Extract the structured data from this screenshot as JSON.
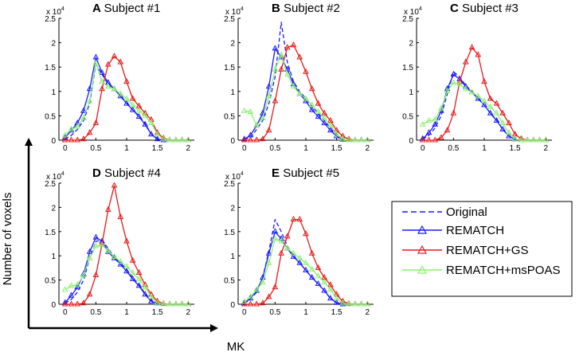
{
  "figure": {
    "y_axis_label": "Number of voxels",
    "x_axis_label": "MK"
  },
  "legend": {
    "entries": [
      {
        "name": "Original",
        "color": "#1a1aff",
        "style": "dashed",
        "marker": "none"
      },
      {
        "name": "REMATCH",
        "color": "#1a1aff",
        "style": "solid",
        "marker": "triangle"
      },
      {
        "name": "REMATCH+GS",
        "color": "#e8191a",
        "style": "solid",
        "marker": "triangle"
      },
      {
        "name": "REMATCH+msPOAS",
        "color": "#8cf06e",
        "style": "solid",
        "marker": "triangle"
      }
    ]
  },
  "chart_data": [
    {
      "type": "line",
      "panel": "A",
      "title": "Subject #1",
      "x": [
        0,
        0.1,
        0.2,
        0.3,
        0.4,
        0.5,
        0.6,
        0.7,
        0.8,
        0.9,
        1.0,
        1.1,
        1.2,
        1.3,
        1.4,
        1.5,
        1.6,
        1.7,
        1.8,
        1.9,
        2.0
      ],
      "xlim": [
        -0.1,
        2.1
      ],
      "ylim": [
        0,
        2.5
      ],
      "xticks": [
        "0",
        "0.5",
        "1",
        "1.5",
        "2"
      ],
      "yticks": [
        "0",
        "0.5",
        "1",
        "1.5",
        "2",
        "2.5"
      ],
      "y_scale": "x 10^4",
      "series": [
        {
          "name": "Original",
          "values": [
            0.02,
            0.1,
            0.22,
            0.4,
            0.75,
            1.55,
            1.35,
            1.15,
            1.05,
            0.9,
            0.78,
            0.62,
            0.5,
            0.35,
            0.12,
            0.03,
            0.01,
            0,
            0,
            0,
            0
          ]
        },
        {
          "name": "REMATCH",
          "values": [
            0.05,
            0.2,
            0.35,
            0.6,
            1.05,
            1.7,
            1.38,
            1.18,
            1.05,
            0.9,
            0.75,
            0.62,
            0.48,
            0.32,
            0.12,
            0.02,
            0,
            0,
            0,
            0,
            0
          ]
        },
        {
          "name": "REMATCH+GS",
          "values": [
            0,
            0,
            0,
            0.02,
            0.15,
            0.35,
            1.05,
            1.55,
            1.72,
            1.6,
            1.2,
            0.85,
            0.7,
            0.55,
            0.42,
            0.15,
            0.04,
            0,
            0,
            0,
            0
          ]
        },
        {
          "name": "REMATCH+msPOAS",
          "values": [
            0.1,
            0.22,
            0.28,
            0.45,
            0.8,
            1.58,
            1.2,
            1.1,
            1.05,
            0.95,
            0.85,
            0.72,
            0.6,
            0.5,
            0.35,
            0.12,
            0.02,
            0,
            0,
            0,
            0
          ]
        }
      ]
    },
    {
      "type": "line",
      "panel": "B",
      "title": "Subject #2",
      "x": [
        0,
        0.1,
        0.2,
        0.3,
        0.4,
        0.5,
        0.6,
        0.7,
        0.8,
        0.9,
        1.0,
        1.1,
        1.2,
        1.3,
        1.4,
        1.5,
        1.6,
        1.7,
        1.8,
        1.9,
        2.0
      ],
      "xlim": [
        -0.1,
        2.1
      ],
      "ylim": [
        0,
        2.5
      ],
      "xticks": [
        "0",
        "0.5",
        "1",
        "1.5",
        "2"
      ],
      "yticks": [
        "0",
        "0.5",
        "1",
        "1.5",
        "2",
        "2.5"
      ],
      "y_scale": "x 10^4",
      "series": [
        {
          "name": "Original",
          "values": [
            0.02,
            0.05,
            0.22,
            0.4,
            0.75,
            1.3,
            2.42,
            1.6,
            1.2,
            1.0,
            0.85,
            0.7,
            0.55,
            0.4,
            0.25,
            0.1,
            0.02,
            0,
            0,
            0,
            0
          ]
        },
        {
          "name": "REMATCH",
          "values": [
            0.02,
            0.1,
            0.3,
            0.55,
            1.1,
            1.88,
            1.7,
            1.45,
            1.15,
            0.95,
            0.8,
            0.62,
            0.48,
            0.35,
            0.2,
            0.08,
            0.01,
            0,
            0,
            0,
            0
          ]
        },
        {
          "name": "REMATCH+GS",
          "values": [
            0,
            0,
            0,
            0.02,
            0.2,
            0.8,
            1.45,
            1.9,
            1.95,
            1.7,
            1.4,
            1.05,
            0.75,
            0.55,
            0.4,
            0.2,
            0.08,
            0.02,
            0,
            0,
            0
          ]
        },
        {
          "name": "REMATCH+msPOAS",
          "values": [
            0.6,
            0.58,
            0.3,
            0.45,
            0.9,
            1.45,
            1.75,
            1.35,
            1.1,
            0.95,
            0.85,
            0.72,
            0.58,
            0.45,
            0.3,
            0.12,
            0.02,
            0,
            0,
            0,
            0
          ]
        }
      ]
    },
    {
      "type": "line",
      "panel": "C",
      "title": "Subject #3",
      "x": [
        0,
        0.1,
        0.2,
        0.3,
        0.4,
        0.5,
        0.6,
        0.7,
        0.8,
        0.9,
        1.0,
        1.1,
        1.2,
        1.3,
        1.4,
        1.5,
        1.6,
        1.7,
        1.8,
        1.9,
        2.0
      ],
      "xlim": [
        -0.1,
        2.1
      ],
      "ylim": [
        0,
        2.5
      ],
      "xticks": [
        "0",
        "0.5",
        "1",
        "1.5",
        "2"
      ],
      "yticks": [
        "0",
        "0.5",
        "1",
        "1.5",
        "2",
        "2.5"
      ],
      "y_scale": "x 10^4",
      "series": [
        {
          "name": "Original",
          "values": [
            0.02,
            0.1,
            0.25,
            0.5,
            0.95,
            1.4,
            1.3,
            1.12,
            1.0,
            0.85,
            0.72,
            0.55,
            0.42,
            0.22,
            0.08,
            0.02,
            0,
            0,
            0,
            0,
            0
          ]
        },
        {
          "name": "REMATCH",
          "values": [
            0.03,
            0.15,
            0.32,
            0.6,
            1.05,
            1.35,
            1.25,
            1.1,
            0.98,
            0.85,
            0.72,
            0.55,
            0.4,
            0.22,
            0.08,
            0.02,
            0,
            0,
            0,
            0,
            0
          ]
        },
        {
          "name": "REMATCH+GS",
          "values": [
            0,
            0,
            0,
            0.05,
            0.2,
            0.55,
            1.2,
            1.6,
            1.9,
            1.75,
            1.2,
            0.85,
            0.75,
            0.55,
            0.35,
            0.12,
            0.03,
            0,
            0,
            0,
            0
          ]
        },
        {
          "name": "REMATCH+msPOAS",
          "values": [
            0.32,
            0.4,
            0.42,
            0.65,
            1.0,
            1.18,
            1.15,
            1.05,
            0.98,
            0.9,
            0.8,
            0.68,
            0.55,
            0.35,
            0.15,
            0.03,
            0,
            0,
            0,
            0,
            0
          ]
        }
      ]
    },
    {
      "type": "line",
      "panel": "D",
      "title": "Subject #4",
      "x": [
        0,
        0.1,
        0.2,
        0.3,
        0.4,
        0.5,
        0.6,
        0.7,
        0.8,
        0.9,
        1.0,
        1.1,
        1.2,
        1.3,
        1.4,
        1.5,
        1.6,
        1.7,
        1.8,
        1.9,
        2.0
      ],
      "xlim": [
        -0.1,
        2.1
      ],
      "ylim": [
        0,
        2.5
      ],
      "xticks": [
        "0",
        "0.5",
        "1",
        "1.5",
        "2"
      ],
      "yticks": [
        "0",
        "0.5",
        "1",
        "1.5",
        "2",
        "2.5"
      ],
      "y_scale": "x 10^4",
      "series": [
        {
          "name": "Original",
          "values": [
            0.02,
            0.1,
            0.25,
            0.5,
            0.95,
            1.3,
            1.32,
            1.15,
            0.98,
            0.85,
            0.72,
            0.55,
            0.4,
            0.22,
            0.08,
            0.02,
            0,
            0,
            0,
            0,
            0
          ]
        },
        {
          "name": "REMATCH",
          "values": [
            0.03,
            0.18,
            0.35,
            0.62,
            1.08,
            1.38,
            1.3,
            1.08,
            0.95,
            0.82,
            0.68,
            0.52,
            0.38,
            0.2,
            0.06,
            0.02,
            0,
            0,
            0,
            0,
            0
          ]
        },
        {
          "name": "REMATCH+GS",
          "values": [
            0,
            0,
            0,
            0.02,
            0.2,
            0.6,
            1.25,
            1.95,
            2.45,
            1.8,
            1.3,
            0.9,
            0.65,
            0.4,
            0.2,
            0.06,
            0.01,
            0,
            0,
            0,
            0
          ]
        },
        {
          "name": "REMATCH+msPOAS",
          "values": [
            0.3,
            0.38,
            0.4,
            0.6,
            0.95,
            1.2,
            1.22,
            1.1,
            0.98,
            0.88,
            0.78,
            0.65,
            0.52,
            0.35,
            0.15,
            0.03,
            0,
            0,
            0,
            0,
            0
          ]
        }
      ]
    },
    {
      "type": "line",
      "panel": "E",
      "title": "Subject #5",
      "x": [
        0,
        0.1,
        0.2,
        0.3,
        0.4,
        0.5,
        0.6,
        0.7,
        0.8,
        0.9,
        1.0,
        1.1,
        1.2,
        1.3,
        1.4,
        1.5,
        1.6,
        1.7,
        1.8,
        1.9,
        2.0
      ],
      "xlim": [
        -0.1,
        2.1
      ],
      "ylim": [
        0,
        2.5
      ],
      "xticks": [
        "0",
        "0.5",
        "1",
        "1.5",
        "2"
      ],
      "yticks": [
        "0",
        "0.5",
        "1",
        "1.5",
        "2",
        "2.5"
      ],
      "y_scale": "x 10^4",
      "series": [
        {
          "name": "Original",
          "values": [
            0.02,
            0.1,
            0.25,
            0.55,
            1.1,
            1.75,
            1.5,
            1.2,
            1.0,
            0.85,
            0.7,
            0.55,
            0.42,
            0.28,
            0.12,
            0.03,
            0,
            0,
            0,
            0,
            0
          ]
        },
        {
          "name": "REMATCH",
          "values": [
            0.02,
            0.12,
            0.28,
            0.55,
            1.05,
            1.5,
            1.35,
            1.15,
            0.98,
            0.85,
            0.7,
            0.55,
            0.42,
            0.28,
            0.12,
            0.03,
            0,
            0,
            0,
            0,
            0
          ]
        },
        {
          "name": "REMATCH+GS",
          "values": [
            0,
            0,
            0,
            0.02,
            0.15,
            0.35,
            1.05,
            1.4,
            1.75,
            1.75,
            1.45,
            1.05,
            0.75,
            0.55,
            0.4,
            0.2,
            0.06,
            0.01,
            0,
            0,
            0
          ]
        },
        {
          "name": "REMATCH+msPOAS",
          "values": [
            0.05,
            0.15,
            0.3,
            0.45,
            0.85,
            1.35,
            1.3,
            1.15,
            1.05,
            0.95,
            0.85,
            0.72,
            0.58,
            0.45,
            0.3,
            0.12,
            0.02,
            0,
            0,
            0,
            0
          ]
        }
      ]
    }
  ]
}
